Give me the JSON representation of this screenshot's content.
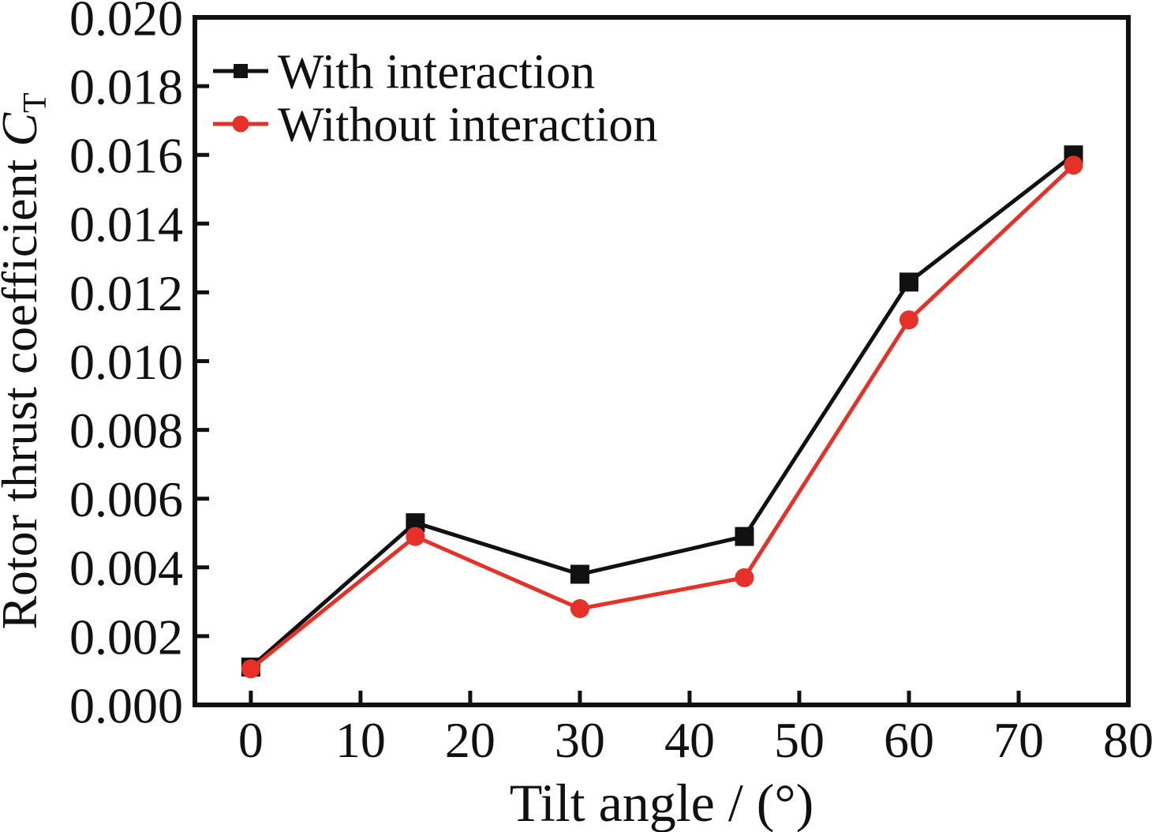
{
  "chart_data": {
    "type": "line",
    "title": "",
    "xlabel": "Tilt angle / (°)",
    "ylabel": "Rotor thrust coefficient C_T",
    "ylabel_prefix": "Rotor thrust coefficient ",
    "ylabel_symbol": "C",
    "ylabel_subscript": "T",
    "x": [
      0,
      15,
      30,
      45,
      60,
      75
    ],
    "series": [
      {
        "name": "With interaction",
        "marker": "square",
        "color": "#111111",
        "values": [
          0.0011,
          0.0053,
          0.0038,
          0.0049,
          0.0123,
          0.016
        ]
      },
      {
        "name": "Without interaction",
        "marker": "circle",
        "color": "#e63128",
        "values": [
          0.00105,
          0.0049,
          0.0028,
          0.0037,
          0.0112,
          0.0157
        ]
      }
    ],
    "xlim": [
      -5.1,
      80
    ],
    "ylim": [
      0,
      0.02
    ],
    "x_ticks": [
      0,
      10,
      20,
      30,
      40,
      50,
      60,
      70,
      80
    ],
    "x_tick_labels": [
      "0",
      "10",
      "20",
      "30",
      "40",
      "50",
      "60",
      "70",
      "80"
    ],
    "y_ticks": [
      0,
      0.002,
      0.004,
      0.006,
      0.008,
      0.01,
      0.012,
      0.014,
      0.016,
      0.018,
      0.02
    ],
    "y_tick_labels": [
      "0.000",
      "0.002",
      "0.004",
      "0.006",
      "0.008",
      "0.010",
      "0.012",
      "0.014",
      "0.016",
      "0.018",
      "0.020"
    ],
    "grid": false,
    "legend_position": "top-left-inside",
    "axis_color": "#111111",
    "background": "#ffffff"
  }
}
